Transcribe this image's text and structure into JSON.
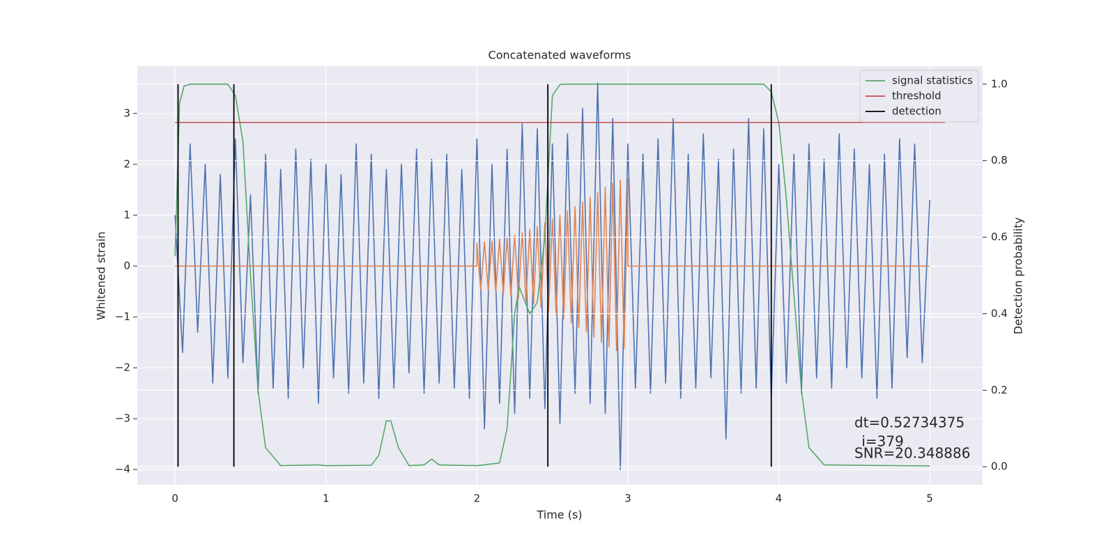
{
  "chart_data": {
    "type": "line",
    "title": "Concatenated waveforms",
    "xlabel": "Time (s)",
    "ylabel": "Whitened strain",
    "y2label": "Detection probability",
    "xlim": [
      -0.25,
      5.35
    ],
    "ylim": [
      -4.3,
      3.93
    ],
    "y2lim": [
      -0.047,
      1.047
    ],
    "xticks": [
      0,
      1,
      2,
      3,
      4,
      5
    ],
    "yticks": [
      {
        "value": -4,
        "label": "−4"
      },
      {
        "value": -3,
        "label": "−3"
      },
      {
        "value": -2,
        "label": "−2"
      },
      {
        "value": -1,
        "label": "−1"
      },
      0,
      1,
      2,
      3
    ],
    "y2ticks": [
      {
        "value": 0,
        "label": "0.0"
      },
      0.2,
      0.4,
      0.6,
      0.8,
      {
        "value": 1,
        "label": "1.0"
      }
    ],
    "grid": true,
    "legend": "upper right",
    "series": [
      {
        "color": "#4c72b0",
        "axis": "y",
        "x": [
          0,
          0.05,
          0.1,
          0.15,
          0.2,
          0.25,
          0.3,
          0.35,
          0.4,
          0.45,
          0.5,
          0.55,
          0.6,
          0.65,
          0.7,
          0.75,
          0.8,
          0.85,
          0.9,
          0.95,
          1.0,
          1.05,
          1.1,
          1.15,
          1.2,
          1.25,
          1.3,
          1.35,
          1.4,
          1.45,
          1.5,
          1.55,
          1.6,
          1.65,
          1.7,
          1.75,
          1.8,
          1.85,
          1.9,
          1.95,
          2.0,
          2.05,
          2.1,
          2.15,
          2.2,
          2.25,
          2.3,
          2.35,
          2.4,
          2.45,
          2.5,
          2.55,
          2.6,
          2.65,
          2.7,
          2.75,
          2.8,
          2.85,
          2.9,
          2.95,
          3.0,
          3.05,
          3.1,
          3.15,
          3.2,
          3.25,
          3.3,
          3.35,
          3.4,
          3.45,
          3.5,
          3.55,
          3.6,
          3.65,
          3.7,
          3.75,
          3.8,
          3.85,
          3.9,
          3.95,
          4.0,
          4.05,
          4.1,
          4.15,
          4.2,
          4.25,
          4.3,
          4.35,
          4.4,
          4.45,
          4.5,
          4.55,
          4.6,
          4.65,
          4.7,
          4.75,
          4.8,
          4.85,
          4.9,
          4.95,
          5.0
        ],
        "values": [
          1.0,
          -1.7,
          2.4,
          -1.3,
          2.0,
          -2.3,
          1.8,
          -2.2,
          2.5,
          -1.9,
          1.4,
          -2.5,
          2.2,
          -2.4,
          1.9,
          -2.6,
          2.3,
          -2.0,
          2.1,
          -2.7,
          2.0,
          -2.2,
          1.8,
          -2.5,
          2.4,
          -2.3,
          2.2,
          -2.6,
          1.9,
          -2.4,
          2.0,
          -2.1,
          2.3,
          -2.5,
          2.1,
          -2.3,
          2.2,
          -2.4,
          1.9,
          -2.6,
          2.5,
          -3.2,
          2.0,
          -2.7,
          2.3,
          -2.9,
          2.8,
          -2.6,
          2.7,
          -2.8,
          2.4,
          -3.1,
          2.6,
          -2.5,
          3.1,
          -2.7,
          3.6,
          -2.9,
          2.9,
          -4.0,
          2.4,
          -2.4,
          2.2,
          -2.5,
          2.5,
          -2.3,
          2.9,
          -2.6,
          2.2,
          -2.4,
          2.6,
          -2.2,
          2.1,
          -3.4,
          2.3,
          -2.5,
          2.9,
          -2.4,
          2.7,
          -2.6,
          2.0,
          -2.3,
          2.2,
          -2.5,
          2.4,
          -2.2,
          2.1,
          -2.4,
          2.6,
          -2.0,
          2.3,
          -2.2,
          2.0,
          -2.6,
          2.2,
          -2.4,
          2.5,
          -1.8,
          2.4,
          -1.9,
          1.3
        ]
      },
      {
        "color": "#dd8452",
        "axis": "y",
        "x": [
          0,
          2.0,
          2.0,
          2.025,
          2.05,
          2.075,
          2.1,
          2.125,
          2.15,
          2.175,
          2.2,
          2.225,
          2.25,
          2.275,
          2.3,
          2.325,
          2.35,
          2.375,
          2.4,
          2.425,
          2.45,
          2.475,
          2.5,
          2.525,
          2.55,
          2.575,
          2.6,
          2.625,
          2.65,
          2.675,
          2.7,
          2.725,
          2.75,
          2.775,
          2.8,
          2.825,
          2.85,
          2.875,
          2.9,
          2.925,
          2.95,
          2.975,
          3.0,
          3.0,
          5.0
        ],
        "values": [
          0,
          0,
          0.45,
          -0.46,
          0.47,
          -0.48,
          0.49,
          -0.51,
          0.53,
          -0.55,
          0.57,
          -0.59,
          0.61,
          -0.63,
          0.66,
          -0.69,
          0.72,
          -0.75,
          0.78,
          -0.81,
          0.85,
          -0.88,
          0.92,
          -0.96,
          1.0,
          -1.04,
          1.08,
          -1.12,
          1.17,
          -1.21,
          1.26,
          -1.3,
          1.35,
          -1.4,
          1.45,
          -1.5,
          1.55,
          -1.59,
          1.63,
          -1.66,
          1.69,
          -1.62,
          1.72,
          0,
          0
        ]
      },
      {
        "name": "signal statistics",
        "color": "#55a868",
        "axis": "y2",
        "x": [
          0,
          0.03,
          0.06,
          0.1,
          0.35,
          0.4,
          0.45,
          0.5,
          0.55,
          0.6,
          0.7,
          0.95,
          1.0,
          1.3,
          1.35,
          1.4,
          1.43,
          1.48,
          1.55,
          1.65,
          1.7,
          1.75,
          2.0,
          2.15,
          2.2,
          2.25,
          2.28,
          2.33,
          2.35,
          2.4,
          2.45,
          2.5,
          2.55,
          2.6,
          3.9,
          3.95,
          4.0,
          4.05,
          4.1,
          4.15,
          4.2,
          4.3,
          5.0
        ],
        "values": [
          0.55,
          0.95,
          0.995,
          1.0,
          1.0,
          0.97,
          0.85,
          0.5,
          0.2,
          0.05,
          0.003,
          0.005,
          0.003,
          0.004,
          0.03,
          0.12,
          0.12,
          0.05,
          0.003,
          0.005,
          0.02,
          0.005,
          0.003,
          0.01,
          0.1,
          0.4,
          0.47,
          0.42,
          0.4,
          0.43,
          0.6,
          0.97,
          0.999,
          1.0,
          1.0,
          0.98,
          0.9,
          0.7,
          0.45,
          0.2,
          0.05,
          0.005,
          0.002
        ]
      },
      {
        "name": "threshold",
        "color": "#c44e52",
        "axis": "y2",
        "x": [
          0,
          5.1
        ],
        "values": [
          0.9,
          0.9
        ]
      },
      {
        "name": "detection",
        "color": "#000000",
        "axis": "y2",
        "kind": "vlines",
        "x": [
          0.02,
          0.39,
          2.47,
          3.95
        ],
        "span": [
          0,
          1
        ]
      }
    ],
    "annotations": [
      "dt=0.52734375",
      " i=379",
      "SNR=20.348886"
    ]
  }
}
